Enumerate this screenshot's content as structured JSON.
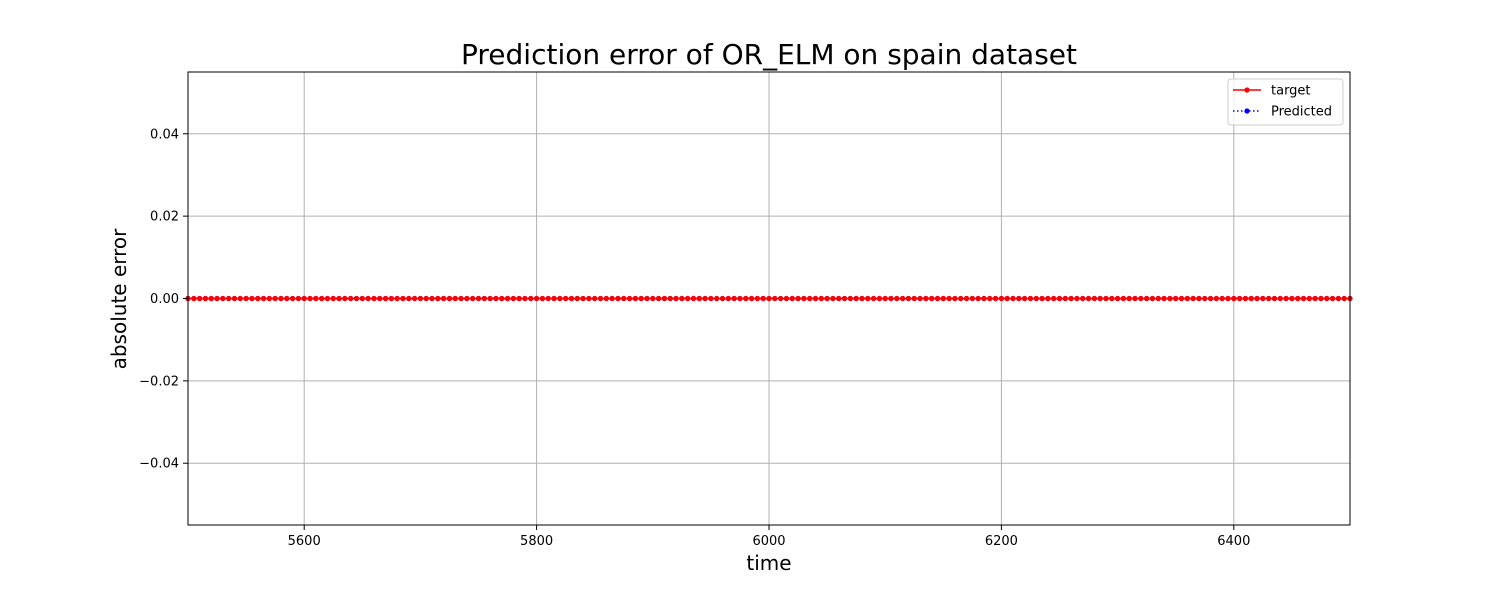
{
  "chart_data": {
    "type": "line",
    "title": "Prediction error of OR_ELM on spain dataset",
    "xlabel": "time",
    "ylabel": "absolute error",
    "xlim": [
      5500,
      6500
    ],
    "ylim": [
      -0.055,
      0.055
    ],
    "x_ticks": [
      5600,
      5800,
      6000,
      6200,
      6400
    ],
    "x_tick_labels": [
      "5600",
      "5800",
      "6000",
      "6200",
      "6400"
    ],
    "y_ticks": [
      -0.04,
      -0.02,
      0.0,
      0.02,
      0.04
    ],
    "y_tick_labels": [
      "−0.04",
      "−0.02",
      "0.00",
      "0.02",
      "0.04"
    ],
    "grid": true,
    "legend_position": "top-right",
    "x_range": {
      "start": 5500,
      "end": 6500,
      "step": 5
    },
    "series": [
      {
        "name": "target",
        "color": "#ff0000",
        "line_style": "solid",
        "marker": "circle",
        "constant_value": 0.0
      },
      {
        "name": "Predicted",
        "color": "#0000ff",
        "line_style": "dotted",
        "marker": "circle",
        "constant_value": 0.0
      }
    ]
  }
}
